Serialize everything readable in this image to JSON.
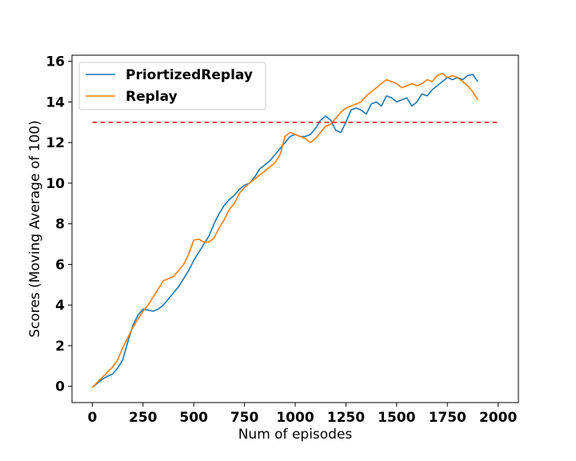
{
  "chart_data": {
    "type": "line",
    "title": "",
    "xlabel": "Num of episodes",
    "ylabel": "Scores (Moving Average of 100)",
    "xlim": [
      -100,
      2100
    ],
    "ylim": [
      -0.8,
      16.3
    ],
    "xticks": [
      0,
      250,
      500,
      750,
      1000,
      1250,
      1500,
      1750,
      2000
    ],
    "yticks": [
      0,
      2,
      4,
      6,
      8,
      10,
      12,
      14,
      16
    ],
    "grid": false,
    "legend": "top-left",
    "series": [
      {
        "name": "PriortizedReplay",
        "color": "#1f77b4",
        "x": [
          0,
          25,
          50,
          75,
          100,
          125,
          150,
          175,
          200,
          225,
          250,
          275,
          300,
          325,
          350,
          375,
          400,
          425,
          450,
          475,
          500,
          525,
          550,
          575,
          600,
          625,
          650,
          675,
          700,
          725,
          750,
          775,
          800,
          825,
          850,
          875,
          900,
          925,
          950,
          975,
          1000,
          1025,
          1050,
          1075,
          1100,
          1125,
          1150,
          1175,
          1200,
          1225,
          1250,
          1275,
          1300,
          1325,
          1350,
          1375,
          1400,
          1425,
          1450,
          1475,
          1500,
          1525,
          1550,
          1575,
          1600,
          1625,
          1650,
          1675,
          1700,
          1725,
          1750,
          1775,
          1800,
          1825,
          1850,
          1875,
          1900
        ],
        "y": [
          -0.05,
          0.15,
          0.35,
          0.5,
          0.6,
          0.9,
          1.3,
          2.2,
          3.0,
          3.5,
          3.8,
          3.75,
          3.7,
          3.8,
          4.0,
          4.3,
          4.6,
          4.9,
          5.3,
          5.7,
          6.2,
          6.6,
          7.0,
          7.4,
          8.0,
          8.5,
          8.9,
          9.2,
          9.4,
          9.7,
          9.9,
          10.0,
          10.3,
          10.7,
          10.9,
          11.1,
          11.4,
          11.7,
          12.0,
          12.3,
          12.4,
          12.3,
          12.3,
          12.4,
          12.7,
          13.1,
          13.3,
          13.1,
          12.6,
          12.5,
          13.0,
          13.6,
          13.7,
          13.6,
          13.4,
          13.9,
          14.0,
          13.8,
          14.3,
          14.2,
          14.0,
          14.1,
          14.2,
          13.8,
          14.0,
          14.4,
          14.3,
          14.6,
          14.8,
          15.0,
          15.2,
          15.1,
          15.2,
          15.1,
          15.3,
          15.35,
          15.0
        ]
      },
      {
        "name": "Replay",
        "color": "#ff7f0e",
        "x": [
          0,
          25,
          50,
          75,
          100,
          125,
          150,
          175,
          200,
          225,
          250,
          275,
          300,
          325,
          350,
          375,
          400,
          425,
          450,
          475,
          500,
          525,
          550,
          575,
          600,
          625,
          650,
          675,
          700,
          725,
          750,
          775,
          800,
          825,
          850,
          875,
          900,
          925,
          950,
          975,
          1000,
          1025,
          1050,
          1075,
          1100,
          1125,
          1150,
          1175,
          1200,
          1225,
          1250,
          1275,
          1300,
          1325,
          1350,
          1375,
          1400,
          1425,
          1450,
          1475,
          1500,
          1525,
          1550,
          1575,
          1600,
          1625,
          1650,
          1675,
          1700,
          1725,
          1750,
          1775,
          1800,
          1825,
          1850,
          1875,
          1900
        ],
        "y": [
          -0.05,
          0.2,
          0.45,
          0.7,
          0.95,
          1.3,
          1.9,
          2.4,
          2.9,
          3.3,
          3.7,
          4.0,
          4.4,
          4.8,
          5.2,
          5.3,
          5.4,
          5.7,
          6.0,
          6.5,
          7.2,
          7.25,
          7.1,
          7.1,
          7.3,
          7.8,
          8.2,
          8.7,
          9.0,
          9.5,
          9.8,
          10.0,
          10.2,
          10.4,
          10.6,
          10.8,
          11.0,
          11.4,
          12.3,
          12.5,
          12.4,
          12.3,
          12.2,
          12.0,
          12.2,
          12.5,
          12.8,
          12.9,
          13.2,
          13.5,
          13.7,
          13.8,
          13.9,
          14.0,
          14.3,
          14.5,
          14.7,
          14.9,
          15.1,
          15.0,
          14.9,
          14.7,
          14.8,
          14.9,
          14.8,
          14.9,
          15.1,
          15.0,
          15.3,
          15.4,
          15.2,
          15.3,
          15.2,
          15.0,
          14.8,
          14.5,
          14.1
        ]
      },
      {
        "name": "",
        "color": "#d62728",
        "dashed": true,
        "x": [
          0,
          2000
        ],
        "y": [
          13,
          13
        ]
      }
    ]
  }
}
